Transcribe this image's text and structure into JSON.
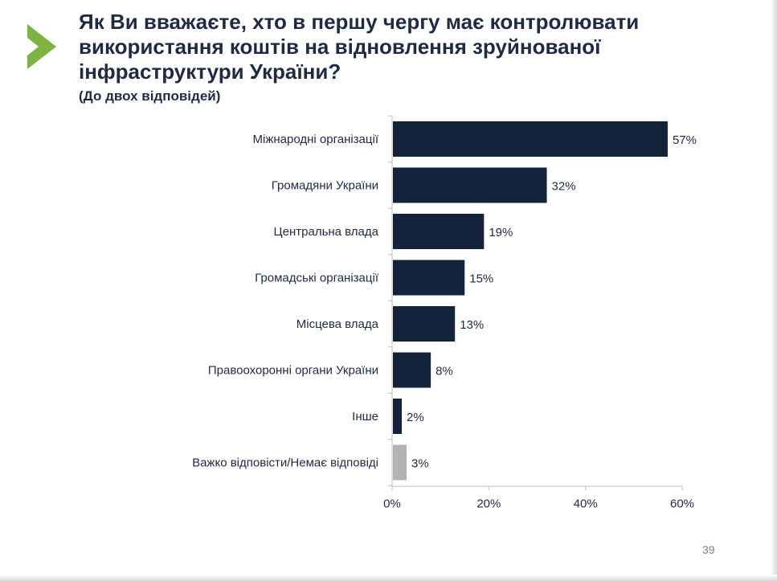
{
  "slide": {
    "title_lines": [
      "Як Ви вважаєте, хто в першу чергу має контролювати",
      "використання коштів на відновлення зруйнованої",
      "інфраструктури України?"
    ],
    "subtitle": "(До двох відповідей)",
    "page_number": "39"
  },
  "colors": {
    "accent_arrow": "#7cb342",
    "bar_main": "#14233c",
    "bar_muted": "#b3b3b3",
    "text": "#1f2a44"
  },
  "chart_data": {
    "type": "bar",
    "orientation": "horizontal",
    "title": "Як Ви вважаєте, хто в першу чергу має контролювати використання коштів на відновлення зруйнованої інфраструктури України?",
    "subtitle": "(До двох відповідей)",
    "categories": [
      "Міжнародні організації",
      "Громадяни України",
      "Центральна влада",
      "Громадські організації",
      "Місцева влада",
      "Правоохоронні органи України",
      "Інше",
      "Важко відповісти/Немає відповіді"
    ],
    "values": [
      57,
      32,
      19,
      15,
      13,
      8,
      2,
      3
    ],
    "value_labels": [
      "57%",
      "32%",
      "19%",
      "15%",
      "13%",
      "8%",
      "2%",
      "3%"
    ],
    "muted_categories": [
      "Важко відповісти/Немає відповіді"
    ],
    "xlim": [
      0,
      60
    ],
    "xticks": [
      0,
      20,
      40,
      60
    ],
    "xtick_labels": [
      "0%",
      "20%",
      "40%",
      "60%"
    ],
    "grid": false,
    "legend": "none"
  }
}
